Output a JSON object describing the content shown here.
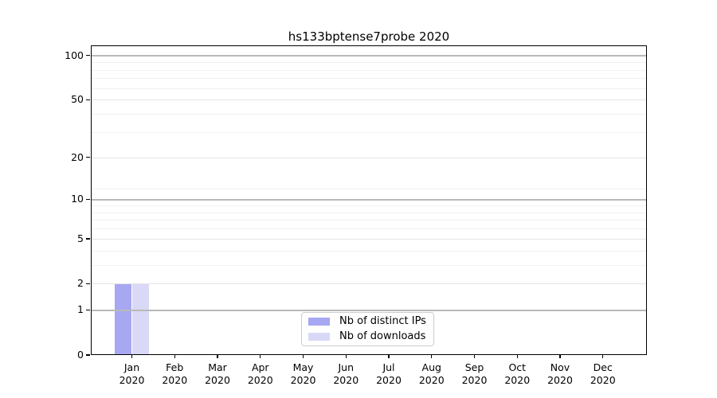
{
  "chart_data": {
    "type": "bar",
    "title": "hs133bptense7probe 2020",
    "categories": [
      "Jan 2020",
      "Feb 2020",
      "Mar 2020",
      "Apr 2020",
      "May 2020",
      "Jun 2020",
      "Jul 2020",
      "Aug 2020",
      "Sep 2020",
      "Oct 2020",
      "Nov 2020",
      "Dec 2020"
    ],
    "series": [
      {
        "name": "Nb of distinct IPs",
        "color": "#a7a7f2",
        "values": [
          2,
          0,
          0,
          0,
          0,
          0,
          0,
          0,
          0,
          0,
          0,
          0
        ]
      },
      {
        "name": "Nb of downloads",
        "color": "#d9d9f7",
        "values": [
          2,
          0,
          0,
          0,
          0,
          0,
          0,
          0,
          0,
          0,
          0,
          0
        ]
      }
    ],
    "xlabel": "",
    "ylabel": "",
    "y_scale": "log10(1+y)",
    "y_ticks": [
      0,
      1,
      2,
      5,
      10,
      20,
      50,
      100
    ],
    "ylim": [
      0,
      117
    ],
    "grid": "horizontal",
    "legend_position": "lower center",
    "emphasis_gridlines": [
      1,
      10,
      100
    ],
    "mid_gridlines": [
      2,
      5,
      20,
      50
    ],
    "minor_gridlines": [
      3,
      4,
      6,
      7,
      8,
      9,
      12,
      30,
      40,
      60,
      70,
      80,
      90
    ],
    "colors": {
      "background": "#ffffff",
      "spine": "#000000",
      "emphasis_gridline": "#b9b9b9",
      "mid_gridline": "#e4e4e4",
      "minor_gridline": "#f1f1f1",
      "tick_label": "#000000"
    }
  }
}
